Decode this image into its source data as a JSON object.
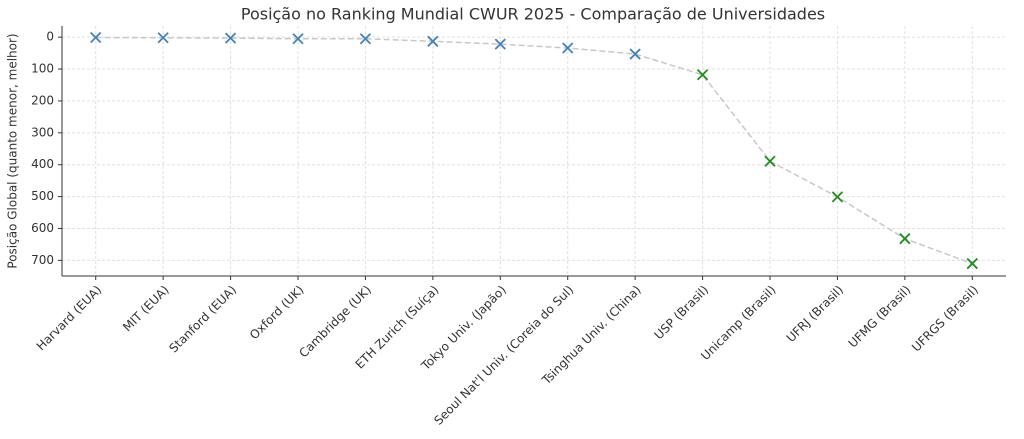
{
  "chart_data": {
    "type": "line",
    "title": "Posição no Ranking Mundial CWUR 2025 - Comparação de Universidades",
    "y_label": "Posição Global (quanto menor, melhor)",
    "categories": [
      "Harvard (EUA)",
      "MIT (EUA)",
      "Stanford (EUA)",
      "Oxford (UK)",
      "Cambridge (UK)",
      "ETH Zurich (Suíça)",
      "Tokyo Univ. (Japão)",
      "Seoul Nat'l Univ. (Coreia do Sul)",
      "Tsinghua Univ. (China)",
      "USP (Brasil)",
      "Unicamp (Brasil)",
      "UFRJ (Brasil)",
      "UFMG (Brasil)",
      "UFRGS (Brasil)"
    ],
    "values": [
      1,
      2,
      3,
      5,
      5,
      13,
      22,
      34,
      53,
      118,
      389,
      501,
      632,
      710
    ],
    "colors": [
      "#4682b4",
      "#4682b4",
      "#4682b4",
      "#4682b4",
      "#4682b4",
      "#4682b4",
      "#4682b4",
      "#4682b4",
      "#4682b4",
      "#228b22",
      "#228b22",
      "#228b22",
      "#228b22",
      "#228b22"
    ],
    "line_color": "#c8c8c8",
    "ylim": [
      749,
      -35
    ],
    "yticks": [
      0,
      100,
      200,
      300,
      400,
      500,
      600,
      700
    ],
    "y_inverted": true,
    "grid": true
  }
}
